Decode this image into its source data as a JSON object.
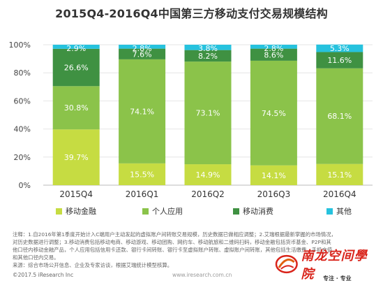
{
  "chart_data": {
    "type": "bar",
    "stacked": true,
    "title": "2015Q4-2016Q4中国第三方移动支付交易规模结构",
    "categories": [
      "2015Q4",
      "2016Q1",
      "2016Q2",
      "2016Q3",
      "2016Q4"
    ],
    "series": [
      {
        "name": "移动金融",
        "values": [
          39.7,
          15.5,
          14.9,
          14.1,
          15.1
        ],
        "color": "#c6dc42"
      },
      {
        "name": "个人应用",
        "values": [
          30.8,
          74.1,
          73.1,
          74.5,
          68.1
        ],
        "color": "#8bc34a"
      },
      {
        "name": "移动消费",
        "values": [
          26.6,
          7.6,
          8.2,
          8.6,
          11.6
        ],
        "color": "#3f9142"
      },
      {
        "name": "其他",
        "values": [
          2.9,
          2.8,
          3.8,
          2.8,
          5.3
        ],
        "color": "#26c2de"
      }
    ],
    "ylim": [
      0,
      100
    ],
    "yticks": [
      "0%",
      "20%",
      "40%",
      "60%",
      "80%",
      "100%"
    ],
    "grid": true,
    "legend_position": "bottom"
  },
  "footnote": {
    "lines": [
      "注释：1.自2016年第1季度开始计入C端用户主动发起的虚拟账户间转账交易规模，历史数据已做相应调整；2.艾瑞根据最新掌握的市场情况，",
      "对历史数据进行调整；3.移动消费包括移动电商、移动游戏、移动团购、网约车、移动航旅和二维码扫码，移动金融包括货币基金、P2P和其",
      "他口径内移动金融产品，个人应用包括信用卡还款、银行卡间转账、银行卡至虚拟账户转账、虚拟账户间转账，其他包括生活缴费、手机充值",
      "和其他口径内交易。",
      "来源：综合市场公开信息、企业及专家访谈，根据艾瑞统计模型核算。"
    ]
  },
  "copyright": "©2017.5 iResearch Inc",
  "watermark": "www.iresearch.com.cn",
  "brand": {
    "name": "南龙空间學院",
    "subtitle": "专注 · 专业"
  }
}
